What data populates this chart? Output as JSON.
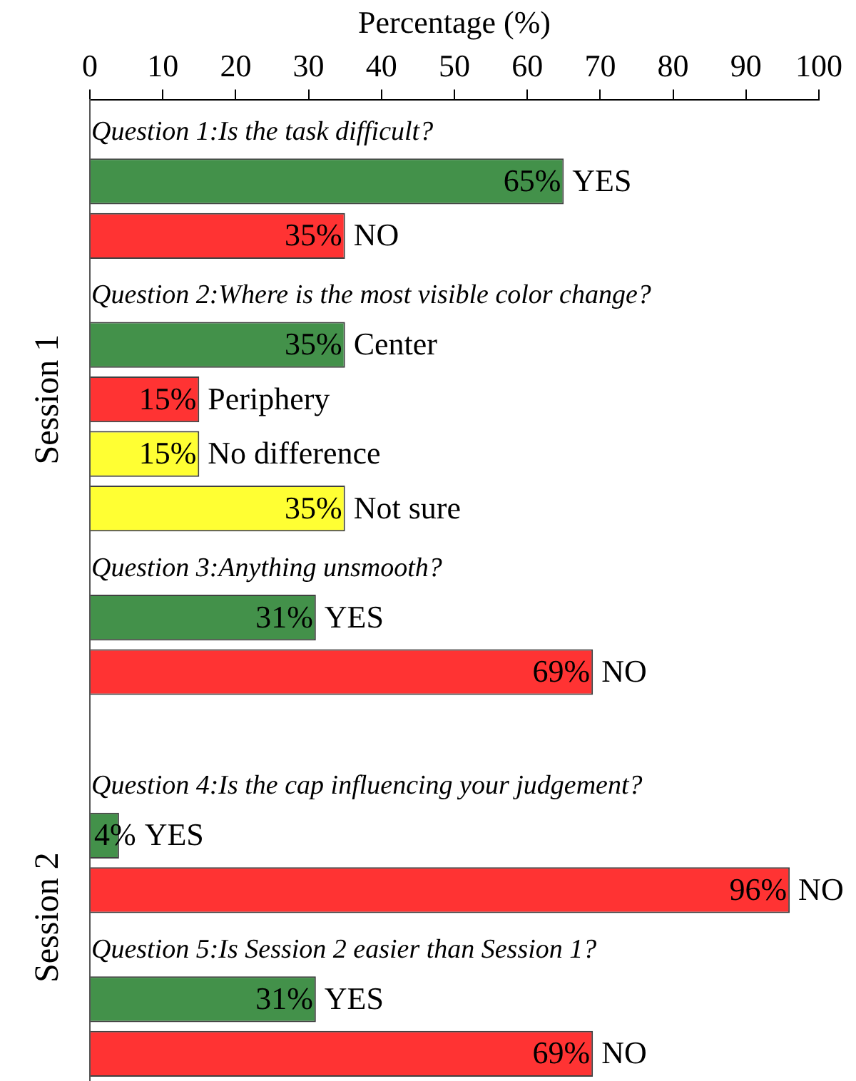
{
  "chart_data": {
    "type": "bar",
    "orientation": "horizontal",
    "xlabel": "Percentage (%)",
    "xlim": [
      0,
      100
    ],
    "xticks": [
      0,
      10,
      20,
      30,
      40,
      50,
      60,
      70,
      80,
      90,
      100
    ],
    "categories": [
      null,
      "YES",
      "NO",
      null,
      "Center",
      "Periphery",
      "No difference",
      "Not sure",
      null,
      "YES",
      "NO",
      null,
      null,
      "YES",
      "NO",
      null,
      "YES",
      "NO"
    ],
    "values": [
      null,
      65,
      35,
      null,
      35,
      15,
      15,
      35,
      null,
      31,
      69,
      null,
      null,
      4,
      96,
      null,
      31,
      69
    ],
    "colors": [
      null,
      "#43914a",
      "#ff3333",
      null,
      "#43914a",
      "#ff3333",
      "#ffff33",
      "#ffff33",
      null,
      "#43914a",
      "#ff3333",
      null,
      null,
      "#43914a",
      "#ff3333",
      null,
      "#43914a",
      "#ff3333"
    ],
    "value_labels": [
      null,
      "65%",
      "35%",
      null,
      "35%",
      "15%",
      "15%",
      "35%",
      null,
      "31%",
      "69%",
      null,
      null,
      "4%",
      "96%",
      null,
      "31%",
      "69%"
    ],
    "annotations": [
      "Question 1:Is the task difficult?",
      "Question 2:Where is the most visible color change?",
      "Question 3:Anything unsmooth?",
      "Question 4:Is the cap influencing your judgement?",
      "Question 5:Is Session 2 easier than Session 1?",
      "Session 1",
      "Session 2"
    ],
    "grid": false,
    "legend": false
  }
}
